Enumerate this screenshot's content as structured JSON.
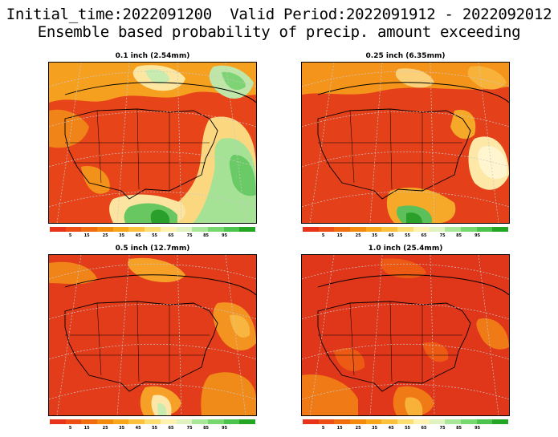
{
  "header": {
    "line1": "Initial_time:2022091200  Valid Period:2022091912 - 2022092012",
    "line2": "Ensemble based probability of precip. amount exceeding"
  },
  "colorbar": {
    "colors": [
      "#e8321a",
      "#ec4e13",
      "#f06c0d",
      "#f48a0b",
      "#f8a61a",
      "#fbc13a",
      "#fdde70",
      "#fff2b0",
      "#dff2bf",
      "#a8e69a",
      "#78d870",
      "#4cc34c",
      "#24a624"
    ],
    "labels": [
      "5",
      "15",
      "25",
      "35",
      "45",
      "55",
      "65",
      "75",
      "85",
      "95"
    ]
  },
  "panels": [
    {
      "title": "0.1 inch (2.54mm)"
    },
    {
      "title": "0.25 inch (6.35mm)"
    },
    {
      "title": "0.5 inch (12.7mm)"
    },
    {
      "title": "1.0 inch (25.4mm)"
    }
  ]
}
